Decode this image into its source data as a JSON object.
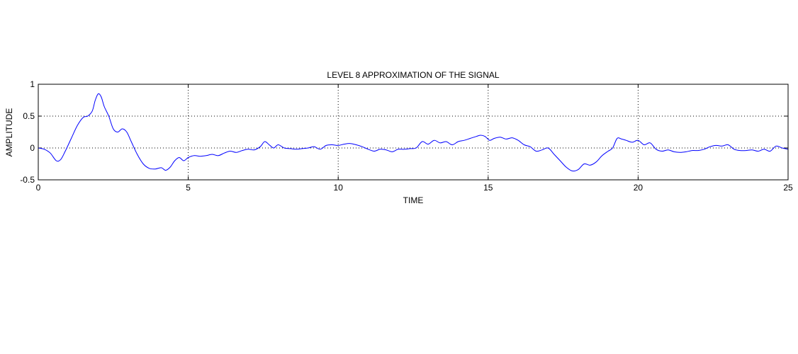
{
  "chart_data": {
    "type": "line",
    "title": "LEVEL 8 APPROXIMATION OF THE SIGNAL",
    "xlabel": "TIME",
    "ylabel": "AMPLITUDE",
    "xlim": [
      0,
      25
    ],
    "ylim": [
      -0.5,
      1
    ],
    "xticks": [
      0,
      5,
      10,
      15,
      20,
      25
    ],
    "xtick_labels": [
      "0",
      "5",
      "10",
      "15",
      "20",
      "25"
    ],
    "yticks": [
      -0.5,
      0,
      0.5,
      1
    ],
    "ytick_labels": [
      "-0.5",
      "0",
      "0.5",
      "1"
    ],
    "grid": true,
    "line_color": "#0000ff",
    "series": [
      {
        "x": [
          0,
          0.2,
          0.4,
          0.6,
          0.75,
          0.9,
          1.1,
          1.3,
          1.5,
          1.65,
          1.8,
          1.9,
          2.0,
          2.1,
          2.2,
          2.35,
          2.5,
          2.65,
          2.8,
          2.95,
          3.1,
          3.3,
          3.5,
          3.7,
          3.9,
          4.1,
          4.25,
          4.4,
          4.55,
          4.7,
          4.85,
          5.0,
          5.2,
          5.4,
          5.6,
          5.8,
          6.0,
          6.2,
          6.4,
          6.6,
          6.8,
          7.0,
          7.2,
          7.4,
          7.55,
          7.7,
          7.85,
          8.0,
          8.2,
          8.4,
          8.6,
          8.8,
          9.0,
          9.2,
          9.4,
          9.6,
          9.8,
          10.0,
          10.2,
          10.4,
          10.6,
          10.8,
          11.0,
          11.2,
          11.4,
          11.6,
          11.8,
          12.0,
          12.2,
          12.4,
          12.6,
          12.8,
          13.0,
          13.2,
          13.4,
          13.6,
          13.8,
          14.0,
          14.2,
          14.4,
          14.6,
          14.75,
          14.9,
          15.05,
          15.2,
          15.4,
          15.6,
          15.8,
          16.0,
          16.2,
          16.4,
          16.6,
          16.8,
          17.0,
          17.2,
          17.4,
          17.6,
          17.8,
          18.0,
          18.2,
          18.4,
          18.6,
          18.8,
          19.0,
          19.15,
          19.3,
          19.45,
          19.6,
          19.8,
          20.0,
          20.2,
          20.4,
          20.6,
          20.8,
          21.0,
          21.2,
          21.4,
          21.6,
          21.8,
          22.0,
          22.2,
          22.4,
          22.6,
          22.8,
          23.0,
          23.2,
          23.4,
          23.6,
          23.8,
          24.0,
          24.2,
          24.4,
          24.6,
          24.8,
          25.0
        ],
        "y": [
          0.0,
          -0.02,
          -0.08,
          -0.2,
          -0.18,
          -0.05,
          0.15,
          0.35,
          0.48,
          0.5,
          0.58,
          0.75,
          0.85,
          0.8,
          0.65,
          0.5,
          0.3,
          0.25,
          0.3,
          0.25,
          0.1,
          -0.1,
          -0.25,
          -0.32,
          -0.33,
          -0.31,
          -0.35,
          -0.3,
          -0.2,
          -0.15,
          -0.2,
          -0.15,
          -0.12,
          -0.13,
          -0.12,
          -0.1,
          -0.12,
          -0.08,
          -0.05,
          -0.07,
          -0.04,
          -0.02,
          -0.03,
          0.02,
          0.1,
          0.05,
          0.0,
          0.05,
          0.0,
          -0.01,
          -0.02,
          -0.01,
          0.0,
          0.02,
          -0.02,
          0.04,
          0.05,
          0.04,
          0.06,
          0.07,
          0.05,
          0.02,
          -0.02,
          -0.05,
          -0.02,
          -0.03,
          -0.06,
          -0.02,
          -0.02,
          -0.01,
          0.0,
          0.1,
          0.06,
          0.12,
          0.08,
          0.1,
          0.05,
          0.1,
          0.12,
          0.15,
          0.18,
          0.2,
          0.18,
          0.12,
          0.15,
          0.17,
          0.14,
          0.16,
          0.12,
          0.05,
          0.02,
          -0.05,
          -0.03,
          0.0,
          -0.1,
          -0.2,
          -0.3,
          -0.36,
          -0.34,
          -0.25,
          -0.27,
          -0.22,
          -0.12,
          -0.05,
          0.0,
          0.15,
          0.14,
          0.12,
          0.09,
          0.12,
          0.05,
          0.08,
          -0.02,
          -0.05,
          -0.03,
          -0.06,
          -0.07,
          -0.06,
          -0.04,
          -0.04,
          -0.02,
          0.02,
          0.04,
          0.03,
          0.05,
          -0.02,
          -0.04,
          -0.04,
          -0.03,
          -0.05,
          -0.02,
          -0.05,
          0.03,
          0.0,
          -0.02
        ]
      }
    ]
  }
}
